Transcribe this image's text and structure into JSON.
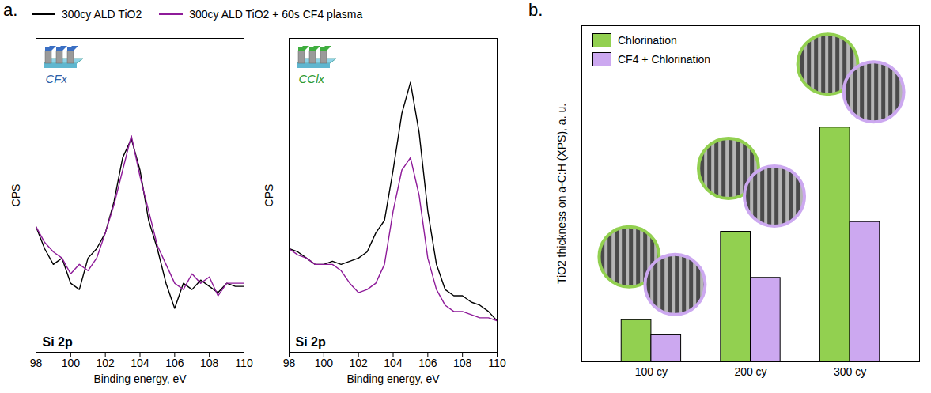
{
  "chart_data": [
    {
      "type": "line",
      "panel_label": "a.",
      "title": "Si 2p",
      "annotations": [
        "CFx"
      ],
      "xlabel": "Binding energy, eV",
      "ylabel": "CPS",
      "xlim": [
        98,
        110
      ],
      "xticks": [
        98,
        100,
        102,
        104,
        106,
        108,
        110
      ],
      "ylim": [
        0,
        100
      ],
      "tick_labels": "x",
      "legend": "top",
      "x": [
        98,
        98.5,
        99,
        99.5,
        100,
        100.5,
        101,
        101.5,
        102,
        102.5,
        103,
        103.5,
        104,
        104.5,
        105,
        105.5,
        106,
        106.5,
        107,
        107.5,
        108,
        108.5,
        109,
        109.5,
        110
      ],
      "series": [
        {
          "name": "300cy ALD TiO2",
          "color": "#000000",
          "values": [
            40,
            33,
            28,
            30,
            22,
            20,
            30,
            33,
            38,
            48,
            62,
            68,
            58,
            42,
            33,
            22,
            14,
            22,
            20,
            23,
            21,
            19,
            22,
            21,
            21
          ]
        },
        {
          "name": "300cy ALD TiO2 + 60s CF4 plasma",
          "color": "#8e1b99",
          "values": [
            40,
            35,
            32,
            30,
            25,
            28,
            26,
            30,
            38,
            47,
            58,
            69,
            56,
            45,
            34,
            28,
            22,
            20,
            25,
            22,
            24,
            18,
            22,
            22,
            22
          ]
        }
      ]
    },
    {
      "type": "line",
      "title": "Si 2p",
      "annotations": [
        "CClx"
      ],
      "xlabel": "Binding energy, eV",
      "ylabel": "CPS",
      "xlim": [
        98,
        110
      ],
      "xticks": [
        98,
        100,
        102,
        104,
        106,
        108,
        110
      ],
      "ylim": [
        0,
        100
      ],
      "tick_labels": "x",
      "x": [
        98,
        98.5,
        99,
        99.5,
        100,
        100.5,
        101,
        101.5,
        102,
        102.5,
        103,
        103.5,
        104,
        104.5,
        105,
        105.5,
        106,
        106.5,
        107,
        107.5,
        108,
        108.5,
        109,
        109.5,
        110
      ],
      "series": [
        {
          "name": "300cy ALD TiO2",
          "color": "#000000",
          "values": [
            33,
            32,
            30,
            28,
            28,
            29,
            28,
            29,
            30,
            32,
            38,
            42,
            58,
            76,
            86,
            70,
            45,
            28,
            20,
            18,
            18,
            16,
            15,
            13,
            10
          ]
        },
        {
          "name": "300cy ALD TiO2 + 60s CF4 plasma",
          "color": "#8e1b99",
          "values": [
            33,
            31,
            30,
            28,
            28,
            28,
            26,
            22,
            19,
            20,
            22,
            28,
            45,
            58,
            62,
            50,
            30,
            20,
            15,
            13,
            13,
            12,
            11,
            11,
            10
          ]
        }
      ]
    },
    {
      "type": "bar",
      "panel_label": "b.",
      "ylabel": "TiO2 thickness on a-C:H (XPS), a. u.",
      "categories": [
        "100 cy",
        "200 cy",
        "300 cy"
      ],
      "ylim": [
        0,
        100
      ],
      "tick_labels": "x",
      "legend": "top-left",
      "series": [
        {
          "name": "Chlorination",
          "color": "#92d050",
          "values": [
            12.4,
            38.7,
            69.7
          ]
        },
        {
          "name": "CF4 + Chlorination",
          "color": "#cca8f0",
          "values": [
            7.9,
            25,
            41.6
          ]
        }
      ]
    }
  ]
}
